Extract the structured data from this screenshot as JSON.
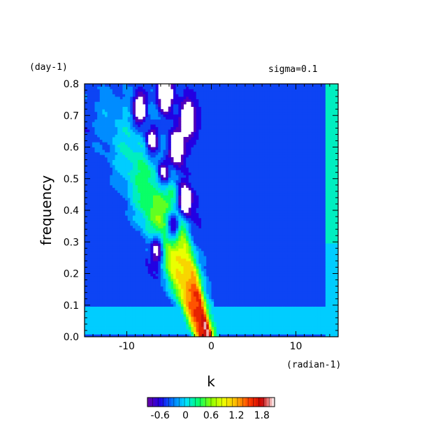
{
  "chart_data": {
    "type": "heatmap",
    "subtype": "filled-contour",
    "annotation": "sigma=0.1",
    "xlabel": "k",
    "xunit": "(radian-1)",
    "ylabel": "frequency",
    "yunit": "(day-1)",
    "xlim": [
      -15,
      15
    ],
    "ylim": [
      0,
      0.8
    ],
    "xticks": [
      -10,
      0,
      10
    ],
    "yticks": [
      0.0,
      0.1,
      0.2,
      0.3,
      0.4,
      0.5,
      0.6,
      0.7,
      0.8
    ],
    "colorbar": {
      "ticks": [
        -0.6,
        0,
        0.6,
        1.2,
        1.8
      ],
      "range": [
        -0.9,
        2.1
      ],
      "colormap": [
        "#6a00a8",
        "#1e00e6",
        "#0078ff",
        "#00e0ff",
        "#00ff6e",
        "#8cff00",
        "#f0ff00",
        "#ffb400",
        "#ff3c00",
        "#c80000",
        "#ffffff"
      ]
    },
    "grid": false
  }
}
